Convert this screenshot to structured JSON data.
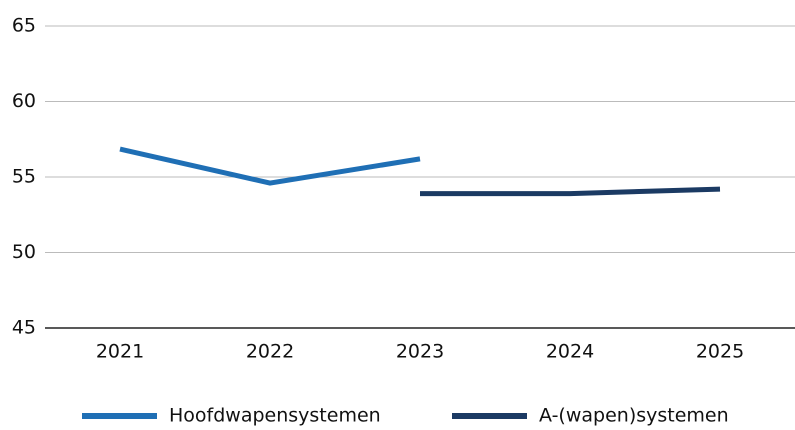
{
  "chart_data": {
    "type": "line",
    "categories": [
      "2021",
      "2022",
      "2023",
      "2024",
      "2025"
    ],
    "series": [
      {
        "name": "Hoofdwapensystemen",
        "color": "#1f6fb5",
        "values": [
          56.85,
          54.6,
          56.2,
          null,
          null
        ]
      },
      {
        "name": "A-(wapen)systemen",
        "color": "#1b3a63",
        "values": [
          null,
          null,
          53.9,
          53.9,
          54.2
        ]
      }
    ],
    "ylim": [
      45,
      65
    ],
    "yticks": [
      45,
      50,
      55,
      60,
      65
    ],
    "grid": true,
    "legend": "bottom"
  }
}
